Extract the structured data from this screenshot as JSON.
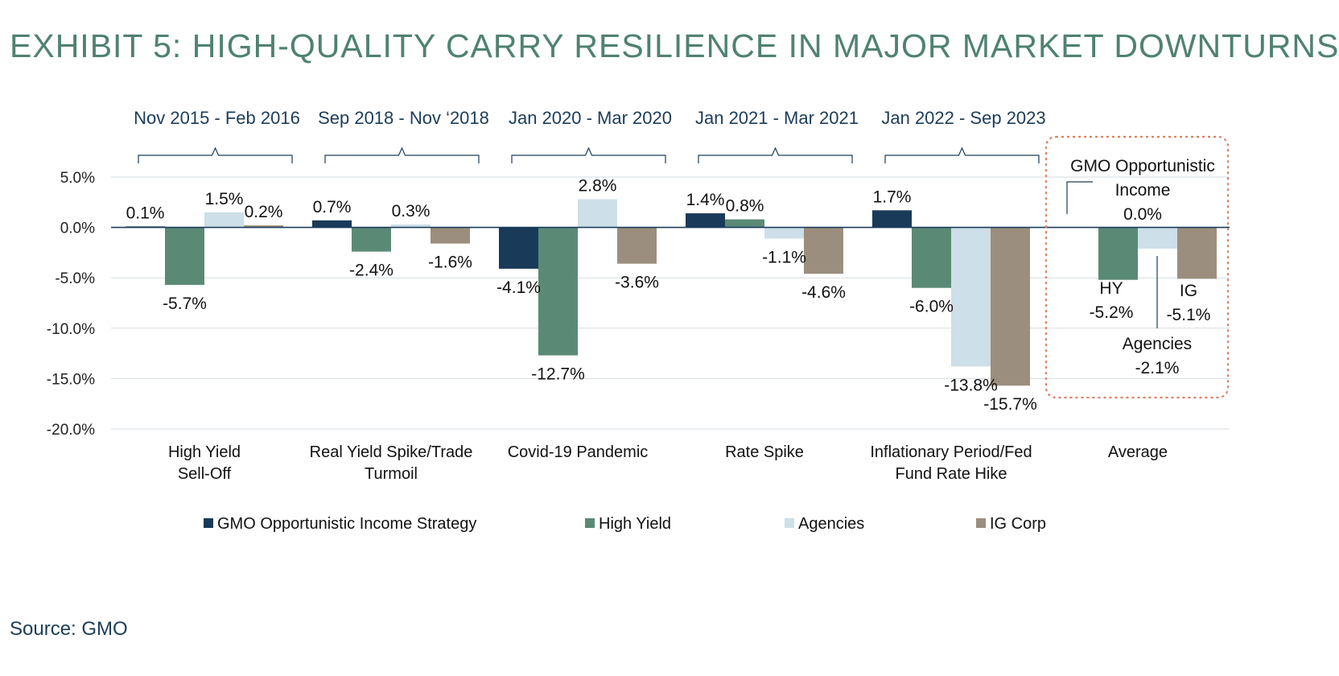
{
  "title": "EXHIBIT 5: HIGH-QUALITY CARRY RESILIENCE IN MAJOR MARKET DOWNTURNS",
  "source": "Source: GMO",
  "colors": {
    "strategy": "#1a3a5a",
    "high_yield": "#5a8a76",
    "agencies": "#cddfe8",
    "ig_corp": "#9c8e7e",
    "title": "#4f8270",
    "axis_text": "#222222",
    "period_text": "#1c3d5a",
    "highlight_box": "#d9825e"
  },
  "chart_data": {
    "type": "bar",
    "title": "",
    "xlabel": "",
    "ylabel": "",
    "ylim": [
      -20,
      5
    ],
    "yticks": [
      5,
      0,
      -5,
      -10,
      -15,
      -20
    ],
    "ytick_labels": [
      "5.0%",
      "0.0%",
      "-5.0%",
      "-10.0%",
      "-15.0%",
      "-20.0%"
    ],
    "grid": true,
    "legend_position": "bottom",
    "categories": [
      [
        "High Yield",
        "Sell-Off"
      ],
      [
        "Real Yield Spike/Trade",
        "Turmoil"
      ],
      [
        "Covid-19 Pandemic"
      ],
      [
        "Rate Spike"
      ],
      [
        "Inflationary Period/Fed",
        "Fund Rate Hike"
      ],
      [
        "Average"
      ]
    ],
    "periods": [
      "Nov 2015 - Feb 2016",
      "Sep 2018 -  Nov ‘2018",
      "Jan 2020 -   Mar 2020",
      "Jan 2021 - Mar 2021",
      "Jan 2022 - Sep 2023"
    ],
    "series": [
      {
        "name": "GMO Opportunistic Income Strategy",
        "values": [
          0.1,
          0.7,
          -4.1,
          1.4,
          1.7,
          0.0
        ],
        "labels": [
          "0.1%",
          "0.7%",
          "-4.1%",
          "1.4%",
          "1.7%",
          ""
        ]
      },
      {
        "name": "High Yield",
        "values": [
          -5.7,
          -2.4,
          -12.7,
          0.8,
          -6.0,
          -5.2
        ],
        "labels": [
          "-5.7%",
          "-2.4%",
          "-12.7%",
          "0.8%",
          "-6.0%",
          ""
        ]
      },
      {
        "name": "Agencies",
        "values": [
          1.5,
          0.3,
          2.8,
          -1.1,
          -13.8,
          -2.1
        ],
        "labels": [
          "1.5%",
          "0.3%",
          "2.8%",
          "-1.1%",
          "-13.8%",
          ""
        ]
      },
      {
        "name": "IG Corp",
        "values": [
          0.2,
          -1.6,
          -3.6,
          -4.6,
          -15.7,
          -5.1
        ],
        "labels": [
          "0.2%",
          "-1.6%",
          "-3.6%",
          "-4.6%",
          "-15.7%",
          ""
        ]
      }
    ],
    "average_callouts": {
      "strategy": [
        "GMO Opportunistic",
        "Income",
        "0.0%"
      ],
      "high_yield": [
        "HY",
        "-5.2%"
      ],
      "ig_corp": [
        "IG",
        "-5.1%"
      ],
      "agencies": [
        "Agencies",
        "-2.1%"
      ]
    }
  }
}
